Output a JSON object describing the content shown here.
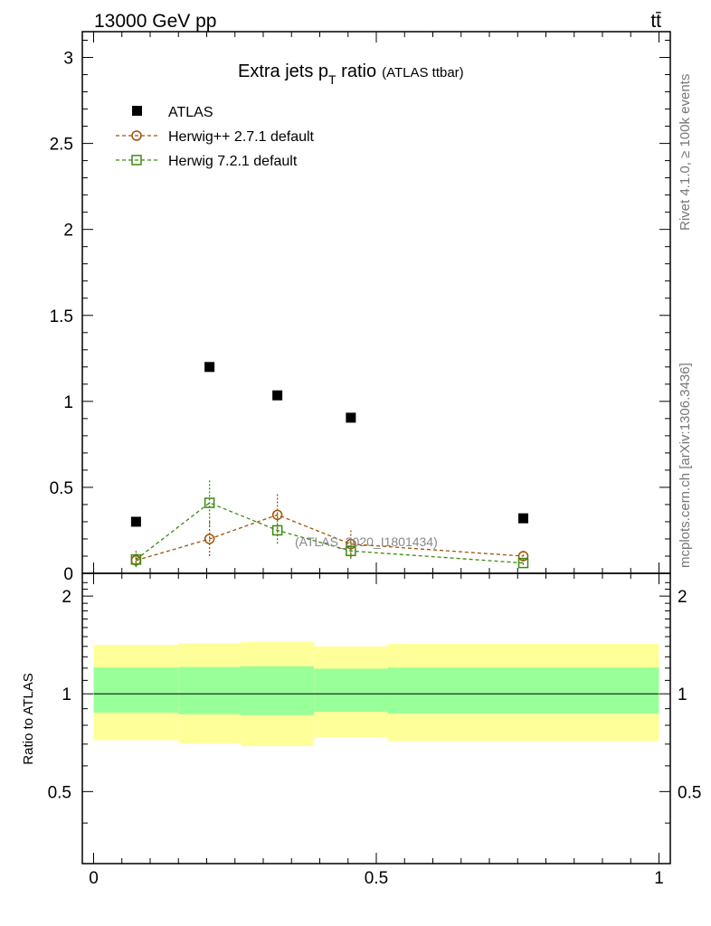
{
  "header": {
    "energy_label": "13000 GeV pp",
    "process_label": "tt̄"
  },
  "title": {
    "main": "Extra jets p",
    "sub": "T",
    "after": " ratio",
    "small": "(ATLAS ttbar)"
  },
  "side_labels": {
    "rivet": "Rivet 4.1.0, ≥ 100k events",
    "mcplots": "mcplots.cern.ch [arXiv:1306.3436]"
  },
  "watermark": "(ATLAS_2020_I1801434)",
  "ratio_ylabel": "Ratio to ATLAS",
  "colors": {
    "atlas": "#000000",
    "herwigpp": "#a0520a",
    "herwig7": "#3a8a10",
    "band_outer": "#ffff99",
    "band_inner": "#99ff99"
  },
  "chart_data": {
    "type": "scatter",
    "title": "Extra jets pT ratio (ATLAS ttbar)",
    "xlim": [
      -0.02,
      1.02
    ],
    "main_ylim": [
      0,
      3.15
    ],
    "main_yticks": [
      0,
      0.5,
      1,
      1.5,
      2,
      2.5,
      3
    ],
    "main_ytick_labels": [
      "0",
      "0.5",
      "1",
      "1.5",
      "2",
      "2.5",
      "3"
    ],
    "ratio_ylim": [
      0.3,
      2.35
    ],
    "ratio_yticks": [
      0.5,
      1,
      2
    ],
    "ratio_ytick_labels": [
      "0.5",
      "1",
      "2"
    ],
    "xticks": [
      0,
      0.5,
      1
    ],
    "xtick_labels": [
      "0",
      "0.5",
      "1"
    ],
    "legend": [
      "ATLAS",
      "Herwig++ 2.7.1 default",
      "Herwig 7.2.1 default"
    ],
    "bin_edges": [
      0,
      0.15,
      0.26,
      0.39,
      0.52,
      1.0
    ],
    "series": [
      {
        "name": "ATLAS",
        "x": [
          0.075,
          0.205,
          0.325,
          0.455,
          0.76
        ],
        "y": [
          0.3,
          1.2,
          1.035,
          0.905,
          0.32
        ]
      },
      {
        "name": "Herwig++ 2.7.1 default",
        "x": [
          0.075,
          0.205,
          0.325,
          0.455,
          0.76
        ],
        "y": [
          0.075,
          0.2,
          0.34,
          0.17,
          0.1
        ],
        "err": [
          0.04,
          0.1,
          0.12,
          0.08,
          0.03
        ]
      },
      {
        "name": "Herwig 7.2.1 default",
        "x": [
          0.075,
          0.205,
          0.325,
          0.455,
          0.76
        ],
        "y": [
          0.08,
          0.41,
          0.25,
          0.13,
          0.06
        ],
        "err": [
          0.05,
          0.13,
          0.08,
          0.05,
          0.02
        ]
      }
    ],
    "ratio_band": {
      "outer_low": [
        0.72,
        0.705,
        0.69,
        0.735,
        0.715
      ],
      "outer_high": [
        1.415,
        1.43,
        1.445,
        1.4,
        1.425
      ],
      "inner_low": [
        0.875,
        0.865,
        0.86,
        0.88,
        0.87
      ],
      "inner_high": [
        1.205,
        1.21,
        1.215,
        1.195,
        1.205
      ]
    }
  }
}
